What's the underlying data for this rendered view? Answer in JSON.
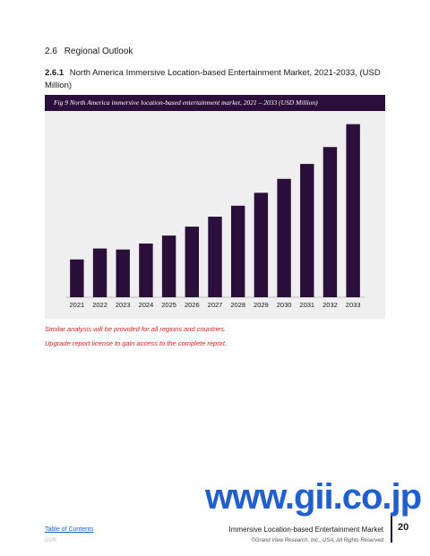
{
  "section": {
    "number": "2.6",
    "title": "Regional Outlook"
  },
  "subsection": {
    "number": "2.6.1",
    "title": "North America Immersive Location-based Entertainment Market, 2021-2033, (USD Million)"
  },
  "figure_caption": "Fig 9 North America immersive location-based entertainment market, 2021 – 2033 (USD Million)",
  "colors": {
    "bar": "#2b0f3b",
    "caption_bg": "#2b0f3b",
    "note": "#e0241b",
    "link": "#1f5fd6"
  },
  "chart_data": {
    "type": "bar",
    "title": "North America immersive location-based entertainment market, 2021 – 2033 (USD Million)",
    "categories": [
      "2021",
      "2022",
      "2023",
      "2024",
      "2025",
      "2026",
      "2027",
      "2028",
      "2029",
      "2030",
      "2031",
      "2032",
      "2033"
    ],
    "values": [
      38,
      49,
      48,
      54,
      62,
      71,
      81,
      92,
      105,
      119,
      134,
      151,
      174
    ],
    "ylim": [
      0,
      180
    ],
    "xlabel": "",
    "ylabel": "",
    "grid": false,
    "legend": "none"
  },
  "notes": {
    "line1": "Similar analysis will be provided for all regions and countries.",
    "line2": "Upgrade report license to gain access to the complete report."
  },
  "watermark": "www.gii.co.jp",
  "footer": {
    "toc_link": "Table of Contents",
    "code": "GVR",
    "report_title": "Immersive Location-based Entertainment Market",
    "copyright": "©Grand View Research, Inc., USA, All Rights Reserved",
    "page_number": "20"
  }
}
